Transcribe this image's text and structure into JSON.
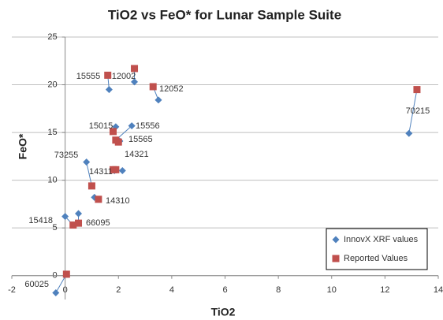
{
  "chart_data": {
    "type": "scatter",
    "title": "TiO2 vs FeO* for Lunar Sample Suite",
    "x_label": "TiO2",
    "y_label": "FeO*",
    "labels": [
      "60025",
      "15418",
      "66095",
      "14310",
      "73255",
      "14311",
      "14321",
      "15565",
      "15015",
      "15556",
      "15555",
      "12002",
      "12052",
      "70215"
    ],
    "series": [
      {
        "name": "InnovX XRF values",
        "color": "#4f81bd",
        "marker": "diamond",
        "x": [
          -0.35,
          0,
          0.5,
          1.1,
          0.8,
          1.85,
          2.15,
          2.05,
          1.9,
          2.5,
          1.65,
          2.6,
          3.5,
          12.9
        ],
        "values": [
          -1.8,
          6.2,
          6.5,
          8.2,
          11.9,
          11.0,
          11.0,
          14.1,
          15.6,
          15.7,
          19.5,
          20.3,
          18.4,
          14.9
        ]
      },
      {
        "name": "Reported Values",
        "color": "#c0504d",
        "marker": "square",
        "x": [
          0.05,
          0.3,
          0.5,
          1.25,
          1.0,
          1.8,
          1.9,
          2.0,
          1.8,
          1.9,
          1.6,
          2.6,
          3.3,
          13.2
        ],
        "values": [
          0.15,
          5.3,
          5.5,
          8.0,
          9.4,
          11.1,
          11.1,
          14.0,
          15.1,
          14.2,
          21.0,
          21.7,
          19.8,
          19.5
        ]
      }
    ],
    "xlim": [
      -2,
      14
    ],
    "xticks": [
      -2,
      0,
      2,
      4,
      6,
      8,
      10,
      12,
      14
    ],
    "ylim": [
      -2.5,
      25
    ],
    "yticks": [
      0,
      5,
      10,
      15,
      20,
      25
    ],
    "grid": true,
    "legend": "lower right"
  }
}
